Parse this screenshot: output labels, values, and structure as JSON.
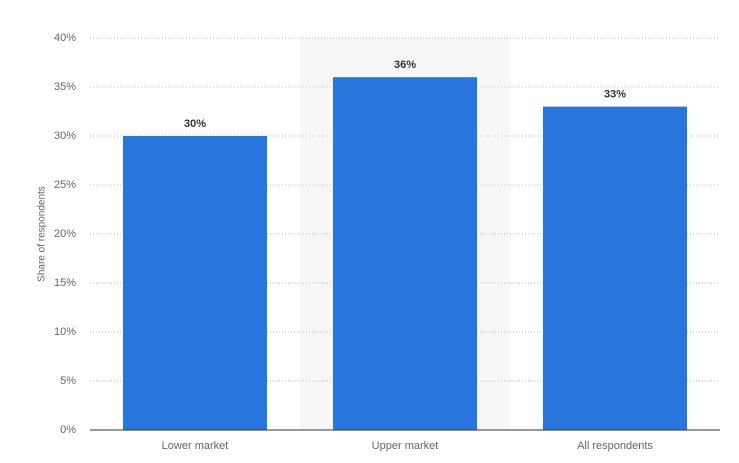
{
  "chart_data": {
    "type": "bar",
    "y_label": "Share of respondents",
    "categories": [
      "Lower market",
      "Upper market",
      "All respondents"
    ],
    "values": [
      30,
      36,
      33
    ],
    "value_labels": [
      "30%",
      "36%",
      "33%"
    ],
    "color": "#2876dd",
    "ylim": [
      0,
      40
    ],
    "yticks": [
      {
        "value": 0,
        "label": "0%"
      },
      {
        "value": 5,
        "label": "5%"
      },
      {
        "value": 10,
        "label": "10%"
      },
      {
        "value": 15,
        "label": "15%"
      },
      {
        "value": 20,
        "label": "20%"
      },
      {
        "value": 25,
        "label": "25%"
      },
      {
        "value": 30,
        "label": "30%"
      },
      {
        "value": 35,
        "label": "35%"
      },
      {
        "value": 40,
        "label": "40%"
      }
    ],
    "grid": true
  }
}
